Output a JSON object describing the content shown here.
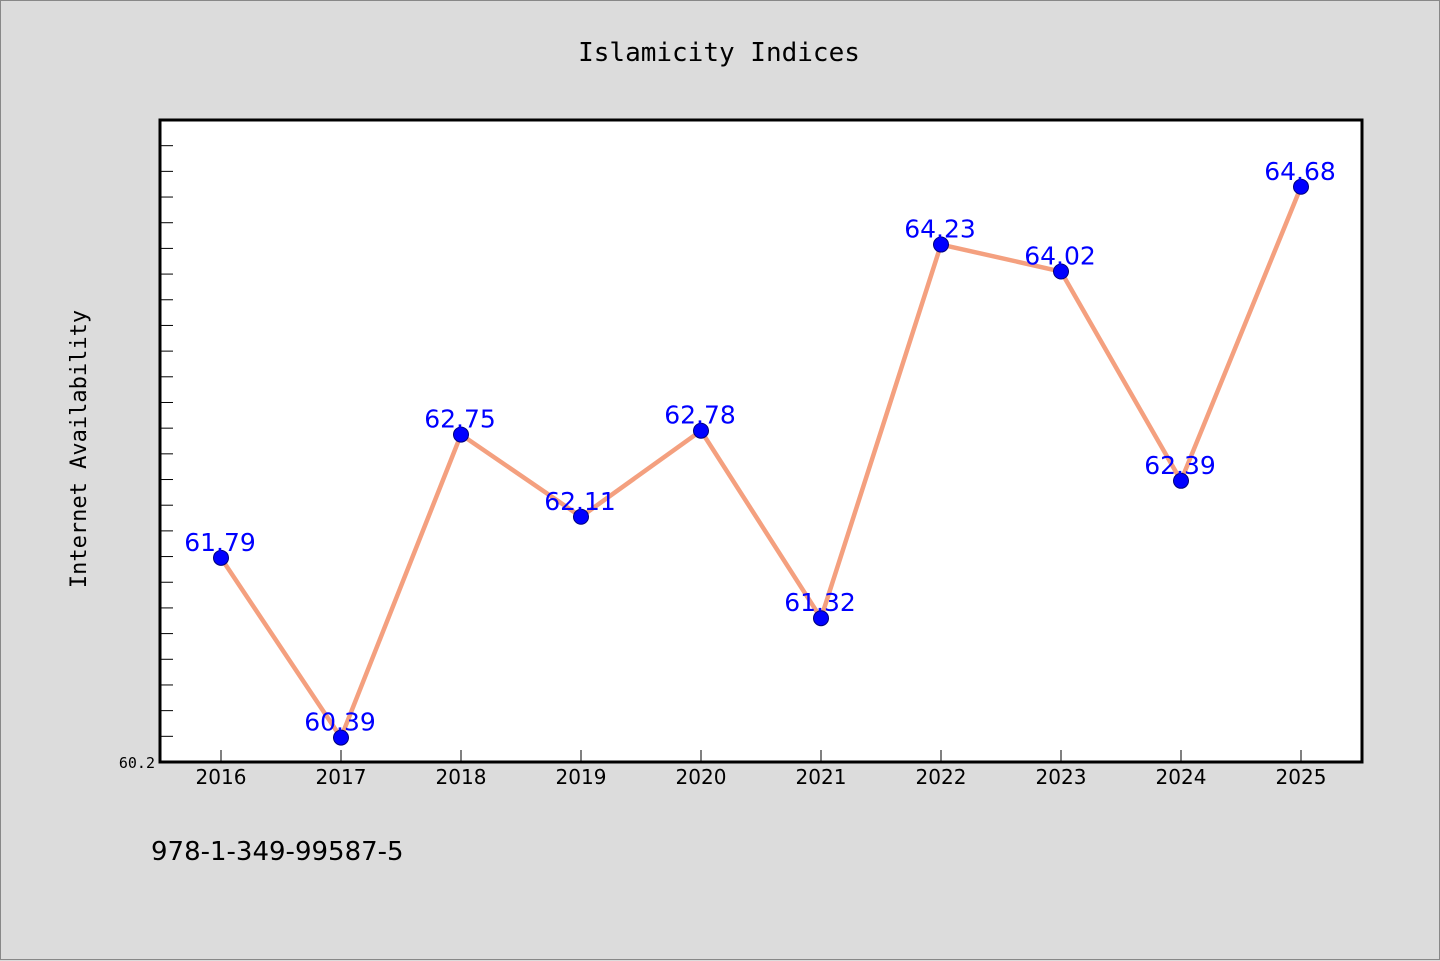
{
  "chart_data": {
    "type": "line",
    "title": "Islamicity Indices",
    "xlabel": "",
    "ylabel": "Internet Availability",
    "categories": [
      "2016",
      "2017",
      "2018",
      "2019",
      "2020",
      "2021",
      "2022",
      "2023",
      "2024",
      "2025"
    ],
    "series": [
      {
        "values": [
          61.79,
          60.39,
          62.75,
          62.11,
          62.78,
          61.32,
          64.23,
          64.02,
          62.39,
          64.68
        ],
        "data_labels": [
          "61.79",
          "60.39",
          "62.75",
          "62.11",
          "62.78",
          "61.32",
          "64.23",
          "64.02",
          "62.39",
          "64.68"
        ],
        "line_color": "#f4a07f",
        "marker_color": "#0000ff"
      }
    ],
    "ylim": [
      60.2,
      65.2
    ],
    "yticks_labeled": [
      "60.2"
    ],
    "grid": false,
    "label_color": "#0000ff"
  },
  "footer": {
    "code": "978-1-349-99587-5"
  }
}
